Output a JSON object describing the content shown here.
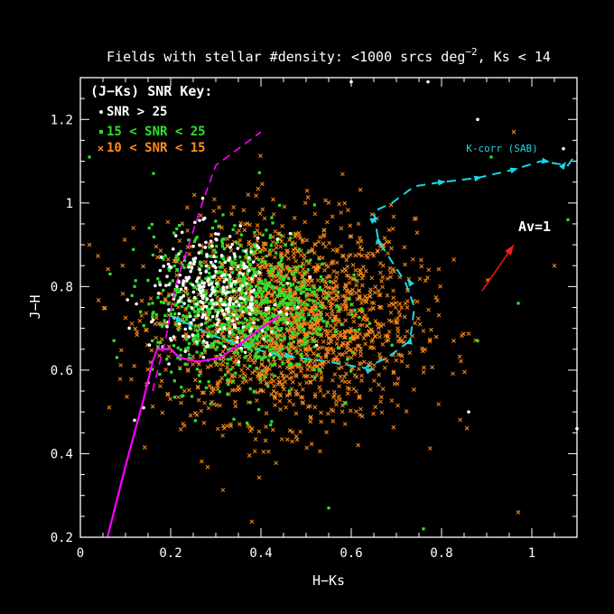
{
  "chart_data": {
    "type": "scatter",
    "title": "Fields with stellar #density: <1000 srcs deg",
    "title_sup": "−2",
    "title_suffix": ", Ks < 14",
    "xlabel": "H−Ks",
    "ylabel": "J−H",
    "xlim": [
      0,
      1.1
    ],
    "ylim": [
      0.2,
      1.3
    ],
    "xticks": [
      0,
      0.2,
      0.4,
      0.6,
      0.8,
      1
    ],
    "xtick_labels": [
      "0",
      "0.2",
      "0.4",
      "0.6",
      "0.8",
      "1"
    ],
    "yticks": [
      0.2,
      0.4,
      0.6,
      0.8,
      1.0,
      1.2
    ],
    "ytick_labels": [
      "0.2",
      "0.4",
      "0.6",
      "0.8",
      "1",
      "1.2"
    ],
    "grid": false,
    "legend_position": "top-left",
    "legend_title": "(J−Ks) SNR Key:",
    "series": [
      {
        "name": "SNR > 25",
        "color": "#ffffff",
        "marker": "dot",
        "cloud": {
          "center": [
            0.3,
            0.78
          ],
          "spread": [
            0.07,
            0.07
          ],
          "count": 300
        },
        "outliers": [
          [
            0.6,
            1.29
          ],
          [
            0.77,
            1.29
          ],
          [
            0.88,
            1.2
          ],
          [
            1.07,
            1.13
          ],
          [
            1.1,
            0.46
          ],
          [
            0.86,
            0.5
          ],
          [
            0.14,
            0.51
          ],
          [
            0.15,
            0.57
          ],
          [
            0.12,
            0.48
          ]
        ]
      },
      {
        "name": "15 < SNR < 25",
        "color": "#2ee02e",
        "marker": "square",
        "cloud": {
          "center": [
            0.36,
            0.75
          ],
          "spread": [
            0.1,
            0.09
          ],
          "count": 900
        },
        "outliers": [
          [
            0.91,
            1.11
          ],
          [
            1.08,
            0.96
          ],
          [
            0.88,
            0.67
          ],
          [
            0.97,
            0.76
          ],
          [
            0.76,
            0.22
          ],
          [
            0.55,
            0.27
          ],
          [
            0.02,
            1.11
          ]
        ]
      },
      {
        "name": "10 < SNR < 15",
        "color": "#ff8c1a",
        "marker": "cross",
        "cloud": {
          "center": [
            0.46,
            0.72
          ],
          "spread": [
            0.14,
            0.12
          ],
          "count": 1900
        },
        "outliers": [
          [
            0.97,
            0.26
          ],
          [
            0.96,
            1.17
          ],
          [
            1.05,
            0.85
          ],
          [
            0.02,
            0.9
          ]
        ]
      }
    ],
    "overlays": {
      "intrinsic_locus": {
        "color": "#ff00ff",
        "points": [
          [
            0.06,
            0.2
          ],
          [
            0.1,
            0.37
          ],
          [
            0.14,
            0.53
          ],
          [
            0.16,
            0.62
          ],
          [
            0.17,
            0.65
          ],
          [
            0.2,
            0.65
          ],
          [
            0.22,
            0.63
          ],
          [
            0.26,
            0.62
          ],
          [
            0.31,
            0.63
          ],
          [
            0.35,
            0.66
          ],
          [
            0.4,
            0.7
          ],
          [
            0.44,
            0.73
          ]
        ]
      },
      "giant_branch": {
        "color": "#ff00ff",
        "points": [
          [
            0.16,
            0.55
          ],
          [
            0.19,
            0.68
          ],
          [
            0.21,
            0.8
          ],
          [
            0.24,
            0.9
          ],
          [
            0.27,
            1.0
          ],
          [
            0.3,
            1.09
          ],
          [
            0.4,
            1.17
          ]
        ]
      },
      "kcorr_track": {
        "label": "K-corr (SAB)",
        "color": "#1ad8e6",
        "points": [
          [
            0.2,
            0.73
          ],
          [
            0.24,
            0.71
          ],
          [
            0.3,
            0.68
          ],
          [
            0.36,
            0.66
          ],
          [
            0.42,
            0.64
          ],
          [
            0.48,
            0.63
          ],
          [
            0.55,
            0.62
          ],
          [
            0.63,
            0.605
          ],
          [
            0.68,
            0.63
          ],
          [
            0.73,
            0.67
          ],
          [
            0.74,
            0.75
          ],
          [
            0.72,
            0.81
          ],
          [
            0.66,
            0.91
          ],
          [
            0.65,
            0.98
          ],
          [
            0.69,
            1.0
          ],
          [
            0.74,
            1.04
          ],
          [
            0.8,
            1.05
          ],
          [
            0.88,
            1.06
          ],
          [
            0.96,
            1.08
          ],
          [
            1.02,
            1.1
          ],
          [
            1.08,
            1.09
          ],
          [
            1.1,
            1.12
          ]
        ],
        "arrows": [
          [
            0.22,
            0.72
          ],
          [
            0.46,
            0.635
          ],
          [
            0.64,
            0.6
          ],
          [
            0.73,
            0.67
          ],
          [
            0.73,
            0.81
          ],
          [
            0.66,
            0.91
          ],
          [
            0.65,
            0.96
          ],
          [
            0.8,
            1.05
          ],
          [
            0.88,
            1.06
          ],
          [
            0.96,
            1.08
          ],
          [
            1.03,
            1.1
          ],
          [
            1.07,
            1.09
          ]
        ]
      },
      "reddening_vector": {
        "label": "Av=1",
        "color": "#ff1a1a",
        "from": [
          0.89,
          0.79
        ],
        "to": [
          0.96,
          0.9
        ]
      }
    }
  }
}
